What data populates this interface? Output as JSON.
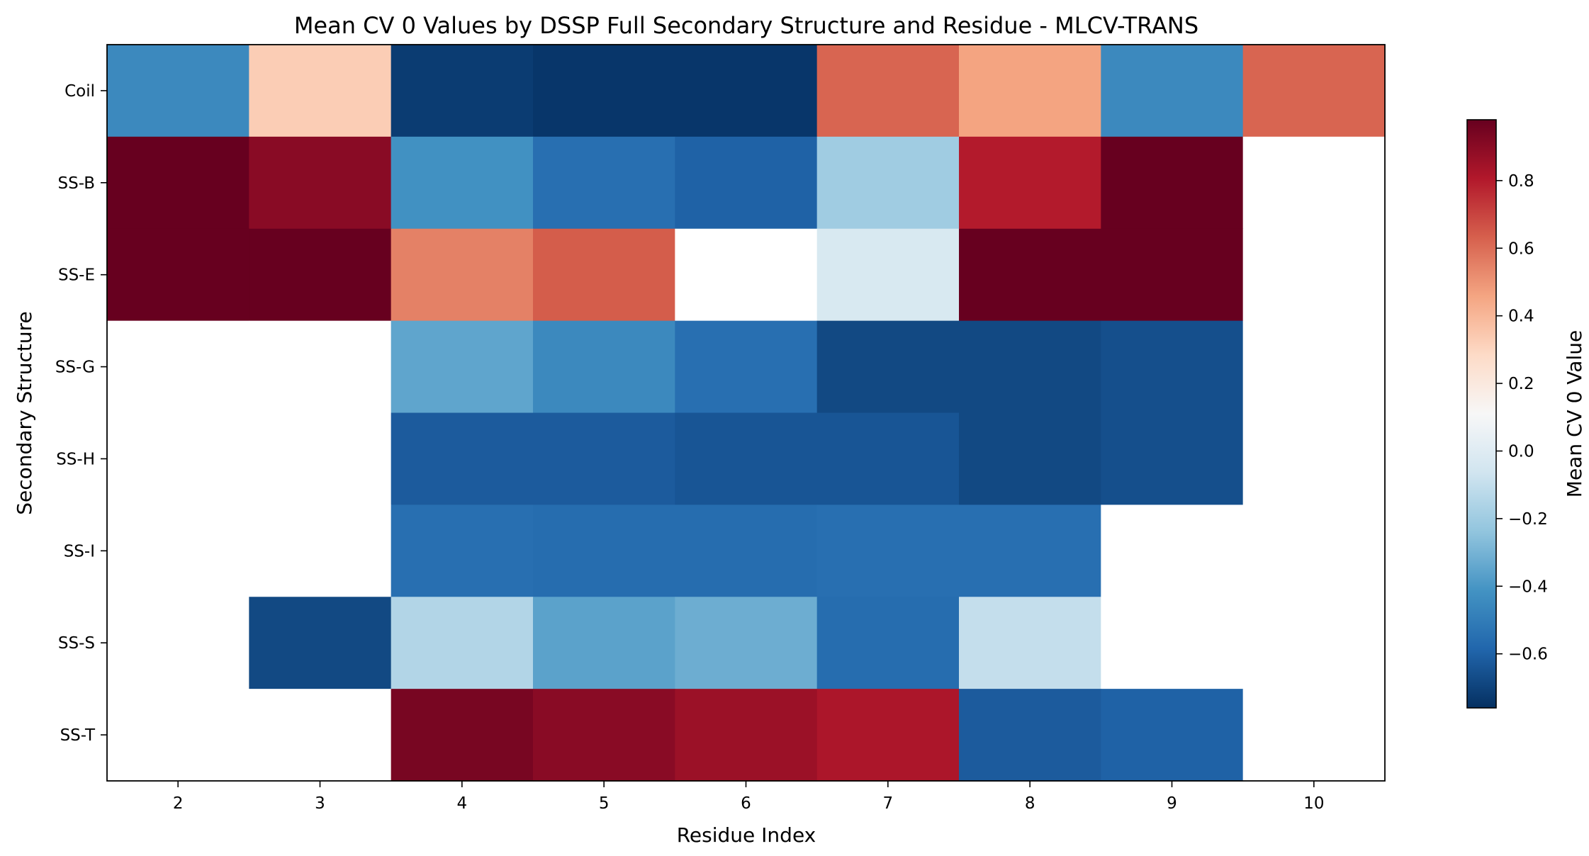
{
  "chart_data": {
    "type": "heatmap",
    "title": "Mean CV 0 Values by DSSP Full Secondary Structure and Residue - MLCV-TRANS",
    "xlabel": "Residue Index",
    "ylabel": "Secondary Structure",
    "x": [
      2,
      3,
      4,
      5,
      6,
      7,
      8,
      9,
      10
    ],
    "y": [
      "Coil",
      "SS-B",
      "SS-E",
      "SS-G",
      "SS-H",
      "SS-I",
      "SS-S",
      "SS-T"
    ],
    "values": [
      [
        -0.45,
        0.33,
        -0.72,
        -0.74,
        -0.74,
        0.62,
        0.46,
        -0.45,
        0.62
      ],
      [
        0.98,
        0.9,
        -0.42,
        -0.55,
        -0.6,
        -0.2,
        0.8,
        0.98,
        null
      ],
      [
        0.98,
        0.98,
        0.55,
        0.64,
        null,
        -0.03,
        0.98,
        0.98,
        null
      ],
      [
        null,
        null,
        -0.35,
        -0.45,
        -0.55,
        -0.68,
        -0.68,
        -0.66,
        null
      ],
      [
        null,
        null,
        -0.62,
        -0.62,
        -0.64,
        -0.64,
        -0.68,
        -0.66,
        null
      ],
      [
        null,
        null,
        -0.55,
        -0.56,
        -0.56,
        -0.55,
        -0.55,
        null,
        null
      ],
      [
        null,
        -0.68,
        -0.15,
        -0.36,
        -0.32,
        -0.56,
        -0.1,
        null,
        null
      ],
      [
        null,
        null,
        0.94,
        0.9,
        0.86,
        0.82,
        -0.62,
        -0.6,
        null
      ]
    ],
    "colorbar": {
      "label": "Mean CV 0 Value",
      "cmap": "RdBu_r",
      "vmin": -0.76,
      "vmax": 0.98,
      "ticks": [
        -0.6,
        -0.4,
        -0.2,
        0.0,
        0.2,
        0.4,
        0.6,
        0.8
      ],
      "tick_labels": [
        "−0.6",
        "−0.4",
        "−0.2",
        "0.0",
        "0.2",
        "0.4",
        "0.6",
        "0.8"
      ]
    },
    "grid": false,
    "missing_color": "#ffffff"
  }
}
